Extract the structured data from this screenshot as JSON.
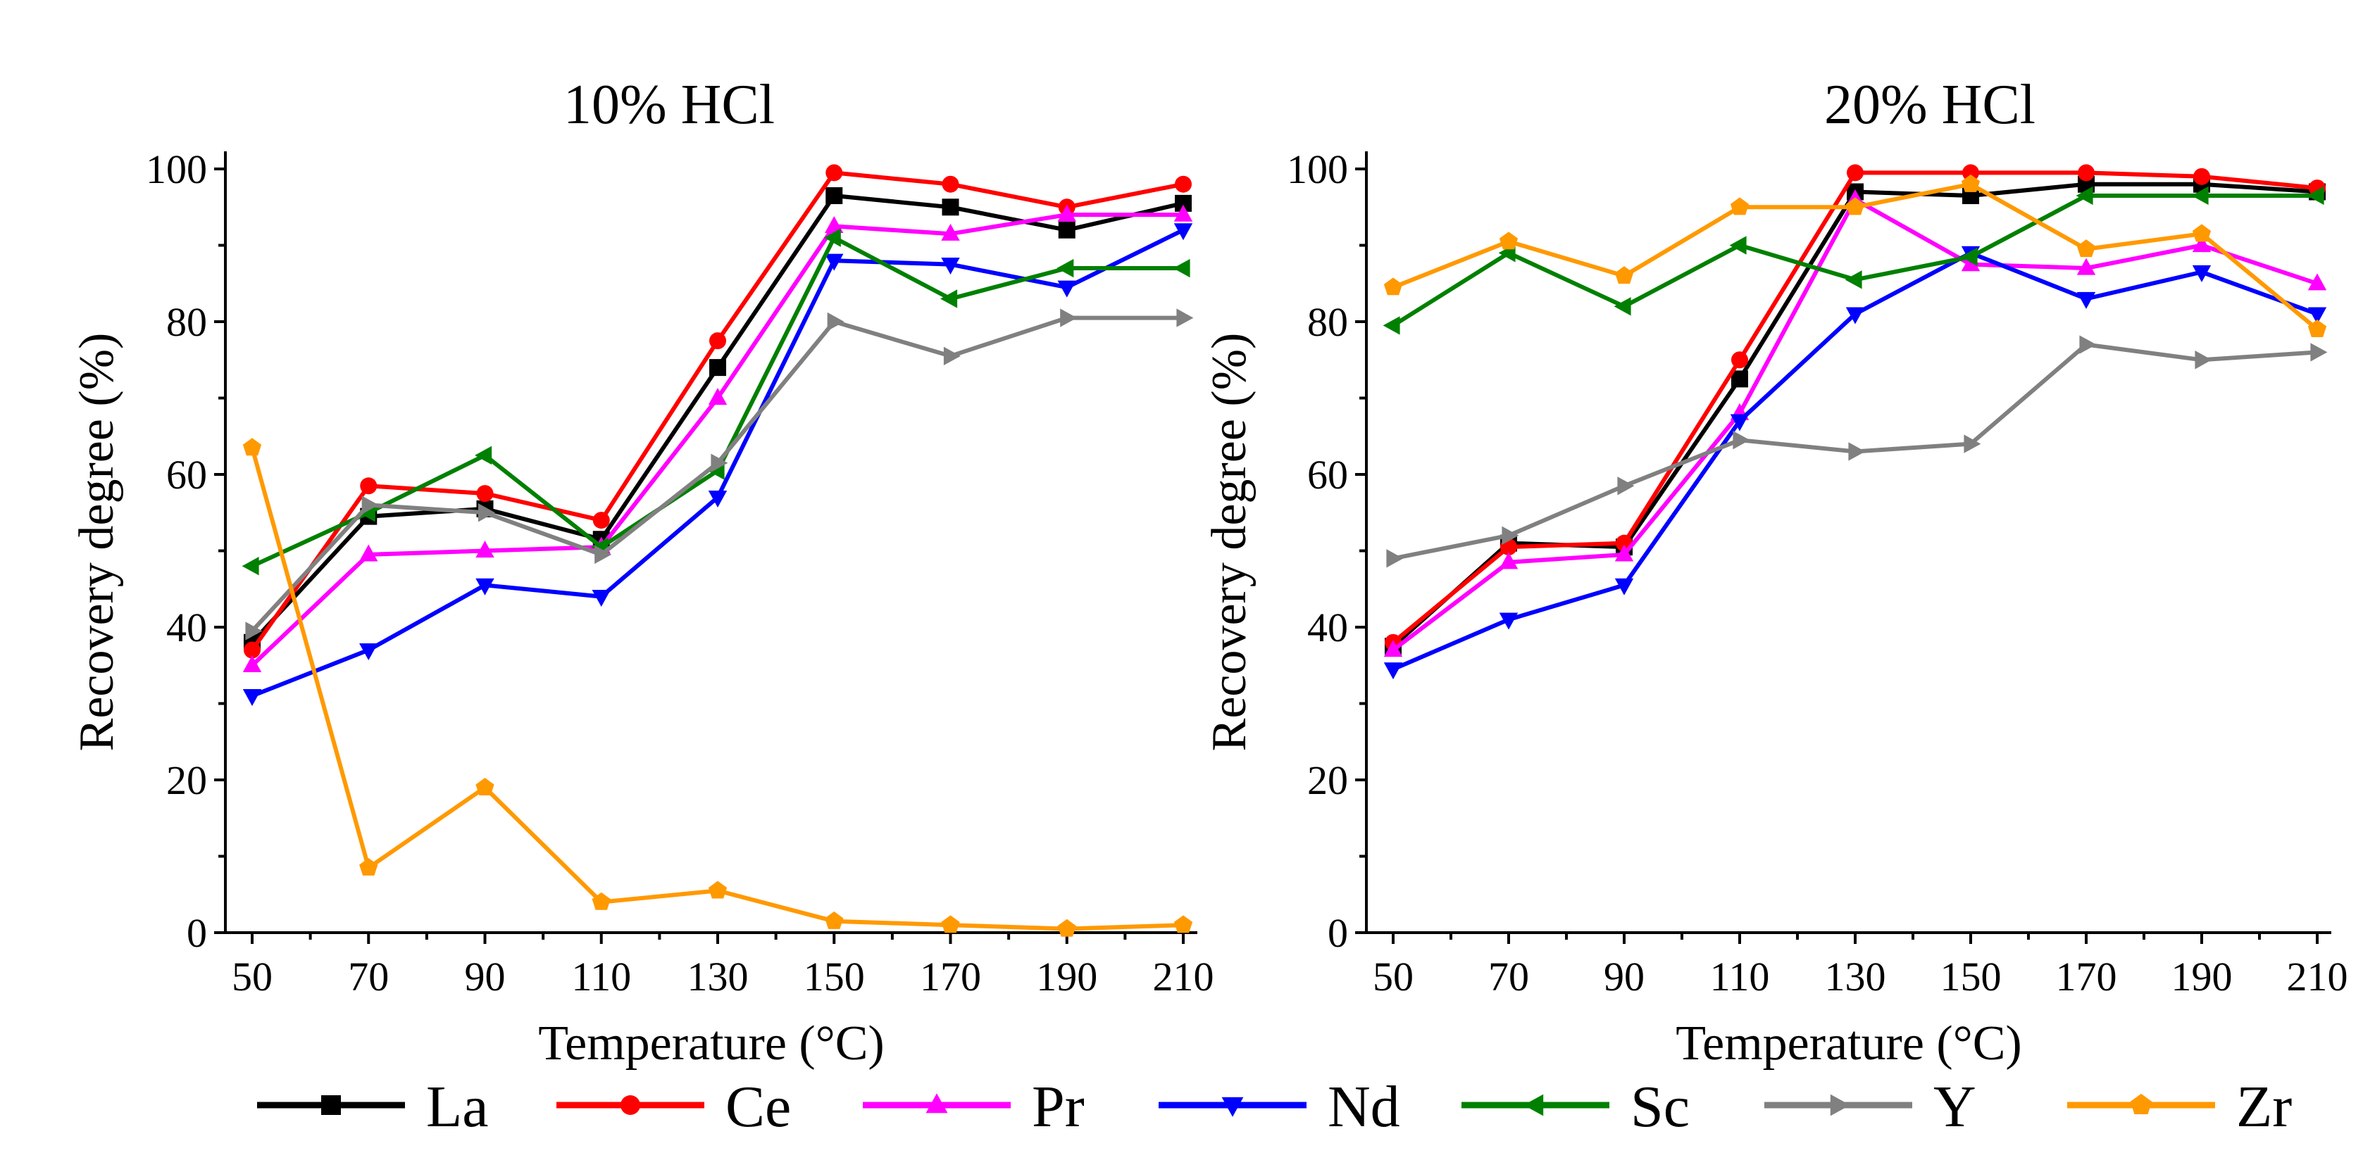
{
  "chart_data": [
    {
      "type": "line",
      "title": "10% HCl",
      "xlabel": "Temperature (°C)",
      "ylabel": "Recovery degree (%)",
      "x": [
        50,
        70,
        90,
        110,
        130,
        150,
        170,
        190,
        210
      ],
      "xlim": [
        50,
        210
      ],
      "ylim": [
        0,
        100
      ],
      "yticks": [
        0,
        20,
        40,
        60,
        80,
        100
      ],
      "series": [
        {
          "name": "La",
          "values": [
            38,
            54.5,
            55.5,
            51.5,
            74,
            96.5,
            95,
            92,
            95.5
          ]
        },
        {
          "name": "Ce",
          "values": [
            37,
            58.5,
            57.5,
            54,
            77.5,
            99.5,
            98,
            95,
            98
          ]
        },
        {
          "name": "Pr",
          "values": [
            35,
            49.5,
            50,
            50.5,
            70,
            92.5,
            91.5,
            94,
            94
          ]
        },
        {
          "name": "Nd",
          "values": [
            31,
            37,
            45.5,
            44,
            57,
            88,
            87.5,
            84.5,
            92
          ]
        },
        {
          "name": "Sc",
          "values": [
            48,
            55,
            62.5,
            50.5,
            60.5,
            91,
            83,
            87,
            87
          ]
        },
        {
          "name": "Y",
          "values": [
            39.5,
            56,
            55,
            49.5,
            61.5,
            80,
            75.5,
            80.5,
            80.5
          ]
        },
        {
          "name": "Zr",
          "values": [
            63.5,
            8.5,
            19,
            4,
            5.5,
            1.5,
            1,
            0.5,
            1
          ]
        }
      ]
    },
    {
      "type": "line",
      "title": "20% HCl",
      "xlabel": "Temperature (°C)",
      "ylabel": "Recovery degree (%)",
      "x": [
        50,
        70,
        90,
        110,
        130,
        150,
        170,
        190,
        210
      ],
      "xlim": [
        50,
        210
      ],
      "ylim": [
        0,
        100
      ],
      "yticks": [
        0,
        20,
        40,
        60,
        80,
        100
      ],
      "series": [
        {
          "name": "La",
          "values": [
            37.5,
            51,
            50.5,
            72.5,
            97,
            96.5,
            98,
            98,
            97
          ]
        },
        {
          "name": "Ce",
          "values": [
            38,
            50.5,
            51,
            75,
            99.5,
            99.5,
            99.5,
            99,
            97.5
          ]
        },
        {
          "name": "Pr",
          "values": [
            37,
            48.5,
            49.5,
            68,
            96,
            87.5,
            87,
            90,
            85
          ]
        },
        {
          "name": "Nd",
          "values": [
            34.5,
            41,
            45.5,
            67,
            81,
            89,
            83,
            86.5,
            81
          ]
        },
        {
          "name": "Sc",
          "values": [
            79.5,
            89,
            82,
            90,
            85.5,
            88.5,
            96.5,
            96.5,
            96.5
          ]
        },
        {
          "name": "Y",
          "values": [
            49,
            52,
            58.5,
            64.5,
            63,
            64,
            77,
            75,
            76
          ]
        },
        {
          "name": "Zr",
          "values": [
            84.5,
            90.5,
            86,
            95,
            95,
            98,
            89.5,
            91.5,
            79
          ]
        }
      ]
    }
  ],
  "legend": [
    {
      "name": "La",
      "color": "#000000",
      "marker": "square"
    },
    {
      "name": "Ce",
      "color": "#ff0000",
      "marker": "circle"
    },
    {
      "name": "Pr",
      "color": "#ff00ff",
      "marker": "triangle-up"
    },
    {
      "name": "Nd",
      "color": "#0000ff",
      "marker": "triangle-down"
    },
    {
      "name": "Sc",
      "color": "#008000",
      "marker": "triangle-left"
    },
    {
      "name": "Y",
      "color": "#808080",
      "marker": "triangle-right"
    },
    {
      "name": "Zr",
      "color": "#ff9900",
      "marker": "pentagon"
    }
  ]
}
